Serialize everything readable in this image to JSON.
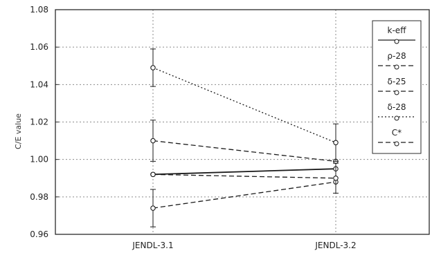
{
  "chart_data": {
    "type": "line",
    "ylabel": "C/E value",
    "xlabel": "",
    "categories": [
      "JENDL-3.1",
      "JENDL-3.2"
    ],
    "ylim": [
      0.96,
      1.08
    ],
    "yticks": [
      "0.96",
      "0.98",
      "1.00",
      "1.02",
      "1.04",
      "1.06",
      "1.08"
    ],
    "grid": "dotted",
    "legend_position": "top-right",
    "series": [
      {
        "name": "k-eff",
        "values": [
          0.992,
          0.995
        ],
        "errors": [
          0.0,
          0.0
        ],
        "style": "solid"
      },
      {
        "name": "ρ-28",
        "values": [
          1.01,
          0.999
        ],
        "errors": [
          0.011,
          0.0
        ],
        "style": "dashed"
      },
      {
        "name": "δ-25",
        "values": [
          0.974,
          0.988
        ],
        "errors": [
          0.01,
          0.0
        ],
        "style": "dashed"
      },
      {
        "name": "δ-28",
        "values": [
          1.049,
          1.009
        ],
        "errors": [
          0.01,
          0.01
        ],
        "style": "dotted"
      },
      {
        "name": "C*",
        "values": [
          0.992,
          0.99
        ],
        "errors": [
          0.0,
          0.008
        ],
        "style": "dashed"
      }
    ]
  },
  "colors": {
    "line": "#1a1a1a",
    "grid": "#8a8a8a",
    "frame": "#2a2a2a"
  }
}
